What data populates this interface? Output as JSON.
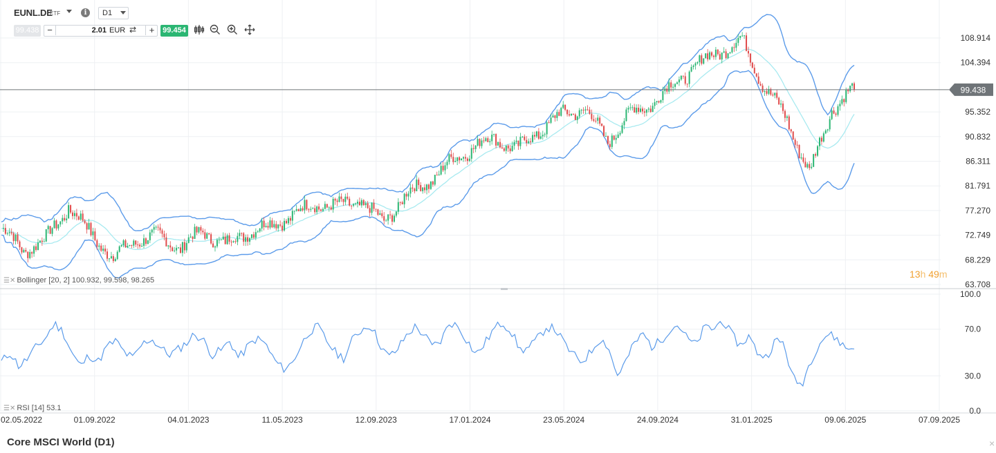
{
  "header": {
    "symbol": "EUNL.DE",
    "symbol_type": "ETF",
    "info_icon": "info-icon",
    "timeframe": "D1"
  },
  "trade_bar": {
    "bid": "99.438",
    "minus": "−",
    "quantity": "2.01",
    "currency": "EUR",
    "plus": "+",
    "ask": "99.454",
    "icons": [
      "swap-icon",
      "candlestick-icon",
      "zoom-out-icon",
      "zoom-in-icon",
      "move-icon"
    ]
  },
  "indicators": {
    "bollinger_label": "Bollinger [20, 2] 100.932, 99.598, 98.265",
    "rsi_label": "RSI [14] 53.1"
  },
  "countdown": {
    "hours": "13",
    "h": "h",
    "minutes": "49",
    "m": "m"
  },
  "footer": {
    "title": "Core MSCI World (D1)",
    "close_icon": "close-icon"
  },
  "colors": {
    "band": "#5b9bea",
    "middle": "#a8eaf0",
    "up": "#2bb673",
    "down": "#e04b4b",
    "rsi": "#5b9bea",
    "grid": "#eef0f3",
    "last_price_bg": "#6f7478"
  },
  "chart_data": [
    {
      "type": "candlestick",
      "title": "Core MSCI World (D1)",
      "x_ticks": [
        "02.05.2022",
        "01.09.2022",
        "04.01.2023",
        "11.05.2023",
        "12.09.2023",
        "17.01.2024",
        "23.05.2024",
        "24.09.2024",
        "31.01.2025",
        "09.06.2025",
        "07.09.2025"
      ],
      "y_ticks": [
        108.914,
        104.394,
        95.352,
        90.832,
        86.311,
        81.791,
        77.27,
        72.749,
        68.229,
        63.708
      ],
      "ylim": [
        63.708,
        112.0
      ],
      "last_price": 99.438,
      "last_price_label": "99.438",
      "close_series": {
        "dates": [
          "02.05.2022",
          "01.06.2022",
          "01.07.2022",
          "01.08.2022",
          "01.09.2022",
          "01.10.2022",
          "01.11.2022",
          "01.12.2022",
          "04.01.2023",
          "01.02.2023",
          "01.03.2023",
          "01.04.2023",
          "11.05.2023",
          "01.06.2023",
          "01.07.2023",
          "01.08.2023",
          "12.09.2023",
          "01.10.2023",
          "01.11.2023",
          "01.12.2023",
          "17.01.2024",
          "01.02.2024",
          "01.03.2024",
          "01.04.2024",
          "23.05.2024",
          "01.06.2024",
          "01.07.2024",
          "01.08.2024",
          "24.09.2024",
          "01.10.2024",
          "01.11.2024",
          "01.12.2024",
          "31.01.2025",
          "15.02.2025",
          "01.03.2025",
          "01.04.2025",
          "08.04.2025",
          "01.05.2025",
          "09.06.2025"
        ],
        "values": [
          74.0,
          70.0,
          72.0,
          78.0,
          73.0,
          68.5,
          72.0,
          72.5,
          70.5,
          73.5,
          71.0,
          73.5,
          74.5,
          76.5,
          78.5,
          78.0,
          79.0,
          75.0,
          80.0,
          82.5,
          86.0,
          89.0,
          90.5,
          88.5,
          92.0,
          95.0,
          96.0,
          90.0,
          95.0,
          97.0,
          100.5,
          104.0,
          106.5,
          108.5,
          100.0,
          94.0,
          84.0,
          96.0,
          99.438
        ]
      },
      "bollinger": {
        "period": 20,
        "stddev": 2,
        "upper": 100.932,
        "middle": 99.598,
        "lower": 98.265
      }
    },
    {
      "type": "line",
      "series_name": "RSI [14]",
      "last_value": 53.1,
      "y_ticks": [
        100.0,
        70.0,
        30.0,
        0.0
      ],
      "ylim": [
        0,
        100
      ],
      "y_tick_labels": [
        "100.0",
        "70.0",
        "30.0",
        "0.0"
      ],
      "values": [
        42,
        50,
        38,
        45,
        55,
        62,
        75,
        68,
        50,
        38,
        48,
        42,
        55,
        60,
        50,
        45,
        57,
        62,
        55,
        48,
        52,
        58,
        66,
        60,
        48,
        52,
        60,
        45,
        55,
        62,
        58,
        44,
        36,
        40,
        55,
        68,
        72,
        60,
        50,
        45,
        62,
        70,
        74,
        58,
        46,
        52,
        64,
        72,
        66,
        55,
        60,
        76,
        72,
        60,
        48,
        58,
        70,
        76,
        68,
        52,
        54,
        62,
        72,
        70,
        58,
        48,
        42,
        50,
        62,
        56,
        30,
        42,
        58,
        66,
        55,
        60,
        70,
        74,
        62,
        56,
        72,
        70,
        78,
        66,
        56,
        64,
        50,
        46,
        60,
        58,
        28,
        22,
        42,
        58,
        66,
        62,
        54,
        53.1
      ]
    }
  ]
}
